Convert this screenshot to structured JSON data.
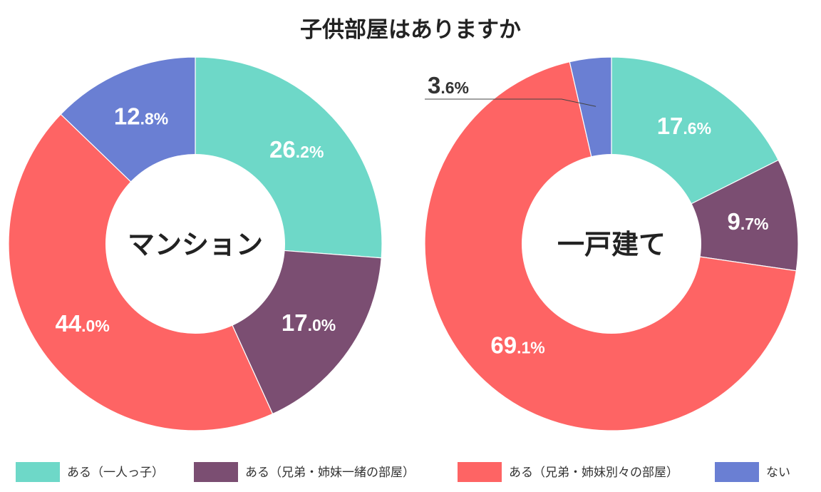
{
  "title": "子供部屋はありますか",
  "colors": {
    "alone": "#6ed8c8",
    "shared": "#7b4e72",
    "separate": "#fe6464",
    "none": "#6a7fd3"
  },
  "legend": [
    {
      "label": "ある（一人っ子）",
      "color": "#6ed8c8"
    },
    {
      "label": "ある（兄弟・姉妹一緒の部屋）",
      "color": "#7b4e72"
    },
    {
      "label": "ある（兄弟・姉妹別々の部屋）",
      "color": "#fe6464"
    },
    {
      "label": "ない",
      "color": "#6a7fd3"
    }
  ],
  "chart_data": [
    {
      "type": "pie",
      "subtype": "donut",
      "center_label": "マンション",
      "categories": [
        "ある（一人っ子）",
        "ある（兄弟・姉妹一緒の部屋）",
        "ある（兄弟・姉妹別々の部屋）",
        "ない"
      ],
      "values": [
        26.2,
        17.0,
        44.0,
        12.8
      ],
      "labels": [
        "26.2%",
        "17.0%",
        "44.0%",
        "12.8%"
      ],
      "colors": [
        "#6ed8c8",
        "#7b4e72",
        "#fe6464",
        "#6a7fd3"
      ]
    },
    {
      "type": "pie",
      "subtype": "donut",
      "center_label": "一戸建て",
      "categories": [
        "ある（一人っ子）",
        "ある（兄弟・姉妹一緒の部屋）",
        "ある（兄弟・姉妹別々の部屋）",
        "ない"
      ],
      "values": [
        17.6,
        9.7,
        69.1,
        3.6
      ],
      "labels": [
        "17.6%",
        "9.7%",
        "69.1%",
        "3.6%"
      ],
      "colors": [
        "#6ed8c8",
        "#7b4e72",
        "#fe6464",
        "#6a7fd3"
      ]
    }
  ]
}
